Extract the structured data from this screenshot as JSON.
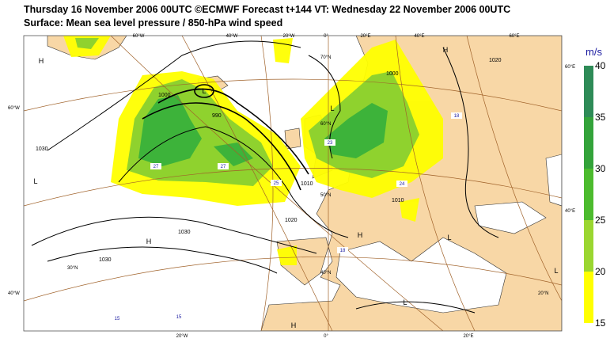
{
  "header": {
    "title": "Thursday 16 November 2006 00UTC ©ECMWF Forecast t+144 VT: Wednesday 22 November 2006 00UTC",
    "subtitle": "Surface: Mean sea level pressure / 850-hPa wind speed"
  },
  "legend": {
    "unit": "m/s",
    "ticks": [
      40,
      35,
      30,
      25,
      20,
      15
    ],
    "colors": [
      "#2e8b57",
      "#33a33a",
      "#4cbb2e",
      "#9ad630",
      "#ffff00"
    ]
  },
  "map": {
    "lon_labels": [
      "60°W",
      "40°W",
      "20°W",
      "0°",
      "20°E",
      "40°E",
      "60°E",
      "20°W",
      "0°",
      "20°E"
    ],
    "lat_labels": [
      "60°W",
      "40°W",
      "60°E",
      "40°E",
      "70°N",
      "60°N",
      "50°N",
      "40°N",
      "30°N",
      "20°N"
    ],
    "isobar_labels": [
      "990",
      "1000",
      "1010",
      "1020",
      "1030",
      "1030",
      "1030",
      "1020",
      "1010",
      "1000"
    ],
    "centers": [
      "H",
      "L",
      "L",
      "H",
      "L",
      "H",
      "L",
      "H",
      "L",
      "L",
      "H"
    ],
    "wind_labels": [
      "27",
      "23",
      "25",
      "24",
      "18",
      "15",
      "15",
      "27",
      "18"
    ]
  }
}
